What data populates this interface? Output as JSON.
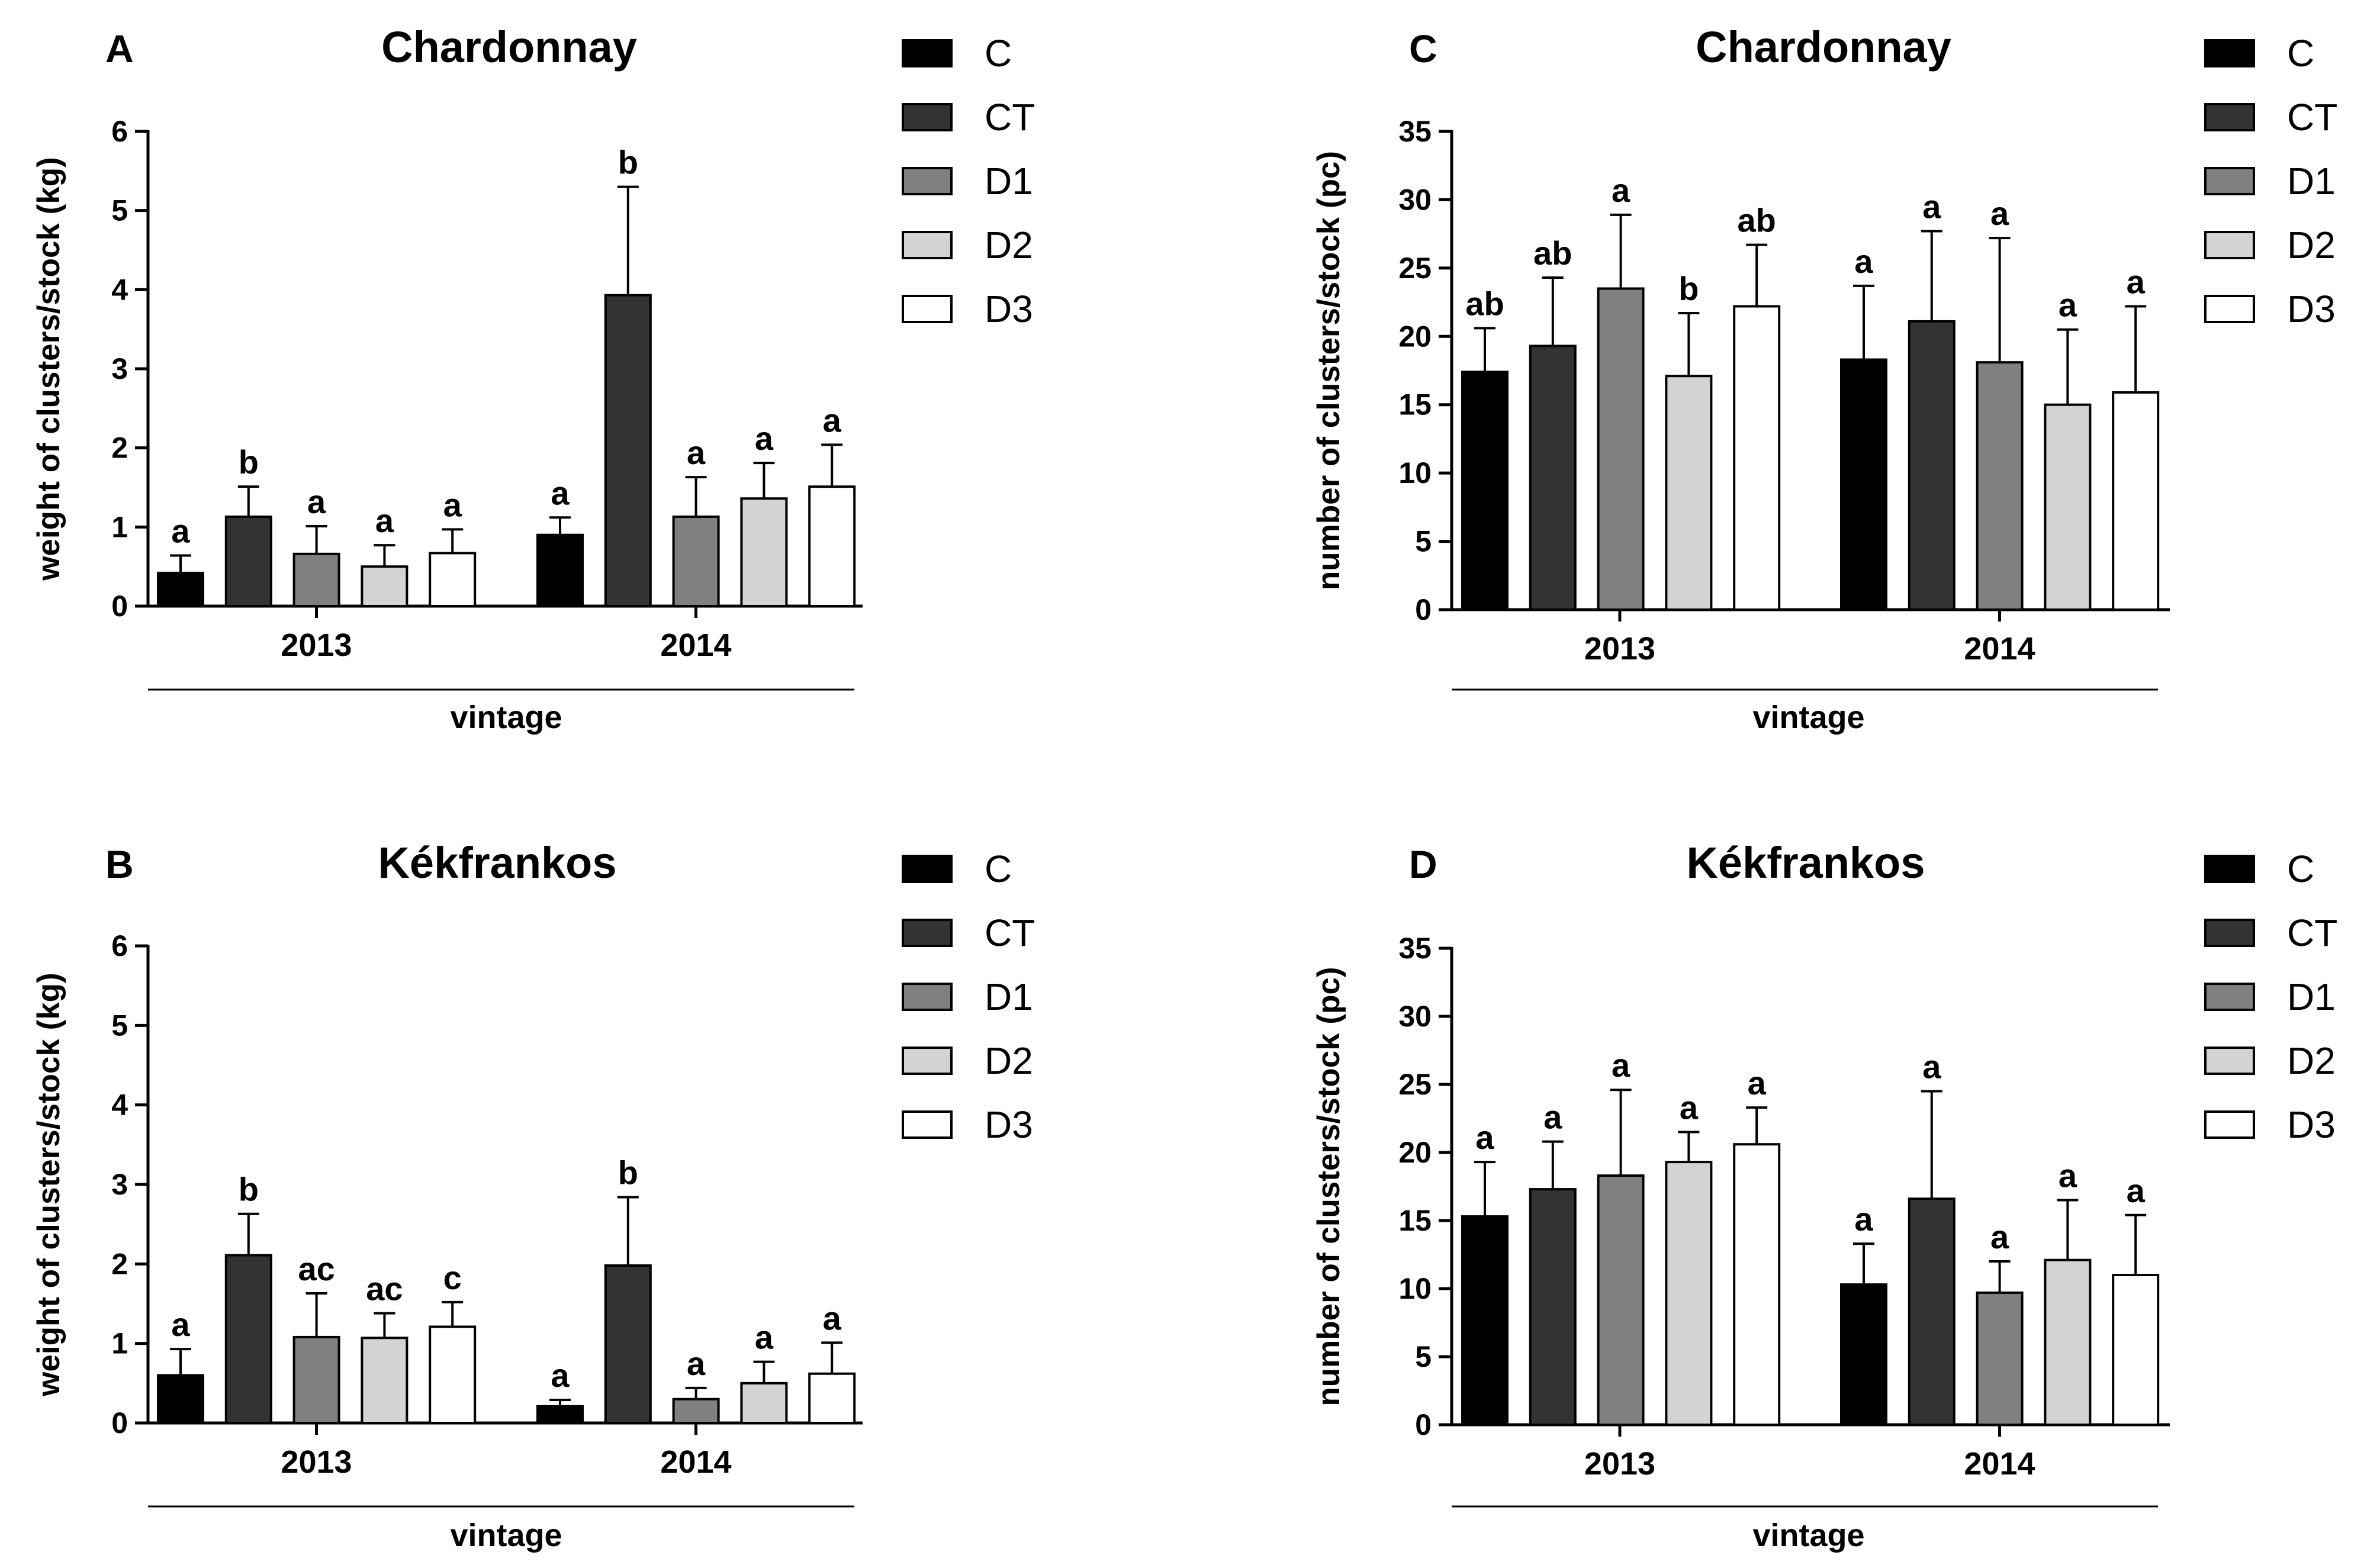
{
  "chart_data": [
    {
      "type": "bar",
      "panel": "A",
      "title": "Chardonnay",
      "ylabel": "weight of clusters/stock (kg)",
      "xlabel": "vintage",
      "ylim": [
        0,
        6
      ],
      "yticks": [
        0,
        1,
        2,
        3,
        4,
        5,
        6
      ],
      "categories": [
        "2013",
        "2014"
      ],
      "legend_position": "right",
      "series": [
        {
          "name": "C",
          "color": "#000000",
          "values": [
            0.42,
            0.9
          ],
          "errors": [
            0.22,
            0.22
          ],
          "labels": [
            "a",
            "a"
          ]
        },
        {
          "name": "CT",
          "color": "#333333",
          "values": [
            1.13,
            3.93
          ],
          "errors": [
            0.38,
            1.37
          ],
          "labels": [
            "b",
            "b"
          ]
        },
        {
          "name": "D1",
          "color": "#808080",
          "values": [
            0.66,
            1.13
          ],
          "errors": [
            0.35,
            0.5
          ],
          "labels": [
            "a",
            "a"
          ]
        },
        {
          "name": "D2",
          "color": "#d3d3d3",
          "values": [
            0.5,
            1.36
          ],
          "errors": [
            0.27,
            0.45
          ],
          "labels": [
            "a",
            "a"
          ]
        },
        {
          "name": "D3",
          "color": "#ffffff",
          "values": [
            0.67,
            1.51
          ],
          "errors": [
            0.3,
            0.53
          ],
          "labels": [
            "a",
            "a"
          ]
        }
      ]
    },
    {
      "type": "bar",
      "panel": "B",
      "title": "Kékfrankos",
      "ylabel": "weight of clusters/stock (kg)",
      "xlabel": "vintage",
      "ylim": [
        0,
        6
      ],
      "yticks": [
        0,
        1,
        2,
        3,
        4,
        5,
        6
      ],
      "categories": [
        "2013",
        "2014"
      ],
      "legend_position": "right",
      "series": [
        {
          "name": "C",
          "color": "#000000",
          "values": [
            0.6,
            0.21
          ],
          "errors": [
            0.33,
            0.08
          ],
          "labels": [
            "a",
            "a"
          ]
        },
        {
          "name": "CT",
          "color": "#333333",
          "values": [
            2.11,
            1.98
          ],
          "errors": [
            0.52,
            0.86
          ],
          "labels": [
            "b",
            "b"
          ]
        },
        {
          "name": "D1",
          "color": "#808080",
          "values": [
            1.08,
            0.3
          ],
          "errors": [
            0.55,
            0.14
          ],
          "labels": [
            "ac",
            "a"
          ]
        },
        {
          "name": "D2",
          "color": "#d3d3d3",
          "values": [
            1.07,
            0.5
          ],
          "errors": [
            0.31,
            0.27
          ],
          "labels": [
            "ac",
            "a"
          ]
        },
        {
          "name": "D3",
          "color": "#ffffff",
          "values": [
            1.21,
            0.62
          ],
          "errors": [
            0.31,
            0.39
          ],
          "labels": [
            "c",
            "a"
          ]
        }
      ]
    },
    {
      "type": "bar",
      "panel": "C",
      "title": "Chardonnay",
      "ylabel": "number of clusters/stock (pc)",
      "xlabel": "vintage",
      "ylim": [
        0,
        35
      ],
      "yticks": [
        0,
        5,
        10,
        15,
        20,
        25,
        30,
        35
      ],
      "categories": [
        "2013",
        "2014"
      ],
      "legend_position": "right",
      "series": [
        {
          "name": "C",
          "color": "#000000",
          "values": [
            17.4,
            18.3
          ],
          "errors": [
            3.2,
            5.4
          ],
          "labels": [
            "ab",
            "a"
          ]
        },
        {
          "name": "CT",
          "color": "#333333",
          "values": [
            19.3,
            21.1
          ],
          "errors": [
            5.0,
            6.6
          ],
          "labels": [
            "ab",
            "a"
          ]
        },
        {
          "name": "D1",
          "color": "#808080",
          "values": [
            23.5,
            18.1
          ],
          "errors": [
            5.4,
            9.1
          ],
          "labels": [
            "a",
            "a"
          ]
        },
        {
          "name": "D2",
          "color": "#d3d3d3",
          "values": [
            17.1,
            15.0
          ],
          "errors": [
            4.6,
            5.5
          ],
          "labels": [
            "b",
            "a"
          ]
        },
        {
          "name": "D3",
          "color": "#ffffff",
          "values": [
            22.2,
            15.9
          ],
          "errors": [
            4.5,
            6.3
          ],
          "labels": [
            "ab",
            "a"
          ]
        }
      ]
    },
    {
      "type": "bar",
      "panel": "D",
      "title": "Kékfrankos",
      "ylabel": "number of clusters/stock (pc)",
      "xlabel": "vintage",
      "ylim": [
        0,
        35
      ],
      "yticks": [
        0,
        5,
        10,
        15,
        20,
        25,
        30,
        35
      ],
      "categories": [
        "2013",
        "2014"
      ],
      "legend_position": "right",
      "series": [
        {
          "name": "C",
          "color": "#000000",
          "values": [
            15.3,
            10.3
          ],
          "errors": [
            4.0,
            3.0
          ],
          "labels": [
            "a",
            "a"
          ]
        },
        {
          "name": "CT",
          "color": "#333333",
          "values": [
            17.3,
            16.6
          ],
          "errors": [
            3.5,
            7.9
          ],
          "labels": [
            "a",
            "a"
          ]
        },
        {
          "name": "D1",
          "color": "#808080",
          "values": [
            18.3,
            9.7
          ],
          "errors": [
            6.3,
            2.3
          ],
          "labels": [
            "a",
            "a"
          ]
        },
        {
          "name": "D2",
          "color": "#d3d3d3",
          "values": [
            19.3,
            12.1
          ],
          "errors": [
            2.2,
            4.4
          ],
          "labels": [
            "a",
            "a"
          ]
        },
        {
          "name": "D3",
          "color": "#ffffff",
          "values": [
            20.6,
            11.0
          ],
          "errors": [
            2.7,
            4.4
          ],
          "labels": [
            "a",
            "a"
          ]
        }
      ]
    }
  ]
}
